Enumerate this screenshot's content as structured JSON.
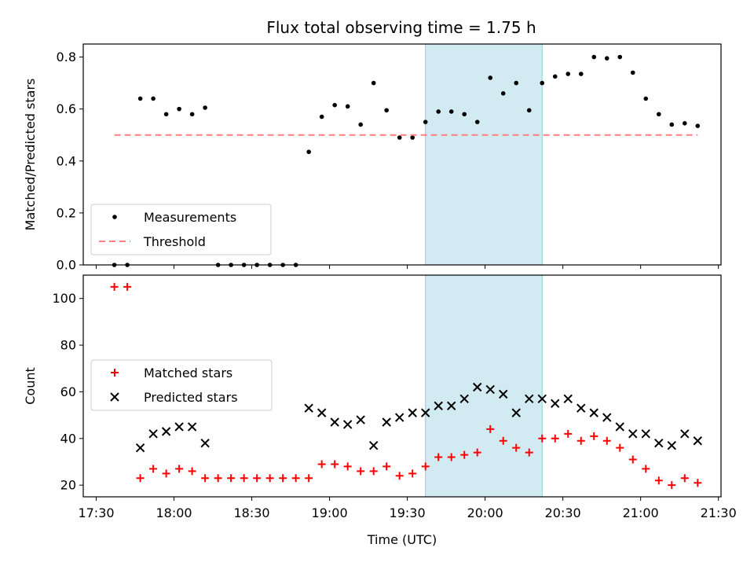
{
  "chart_data": {
    "title": "Flux total observing time = 1.75 h",
    "shaded_region": {
      "x": [
        "19:37",
        "20:22"
      ],
      "color": "#add8e6"
    },
    "x_ticks": [
      "17:30",
      "18:00",
      "18:30",
      "19:00",
      "19:30",
      "20:00",
      "20:30",
      "21:00",
      "21:30"
    ],
    "xlabel": "Time (UTC)",
    "panels": [
      {
        "type": "scatter",
        "ylabel": "Matched/Predicted stars",
        "ylim": [
          0,
          0.85
        ],
        "y_ticks": [
          "0.0",
          "0.2",
          "0.4",
          "0.6",
          "0.8"
        ],
        "legend_position": "lower-left",
        "series": [
          {
            "name": "Measurements",
            "marker": "dot",
            "color": "#000000",
            "x": [
              "17:37",
              "17:42",
              "17:47",
              "17:52",
              "17:57",
              "18:02",
              "18:07",
              "18:12",
              "18:17",
              "18:22",
              "18:27",
              "18:32",
              "18:37",
              "18:42",
              "18:47",
              "18:52",
              "18:57",
              "19:02",
              "19:07",
              "19:12",
              "19:17",
              "19:22",
              "19:27",
              "19:32",
              "19:37",
              "19:42",
              "19:47",
              "19:52",
              "19:57",
              "20:02",
              "20:07",
              "20:12",
              "20:17",
              "20:22",
              "20:27",
              "20:32",
              "20:37",
              "20:42",
              "20:47",
              "20:52",
              "20:57",
              "21:02",
              "21:07",
              "21:12",
              "21:17",
              "21:22"
            ],
            "y": [
              0,
              0,
              0.64,
              0.64,
              0.58,
              0.6,
              0.58,
              0.605,
              0,
              0,
              0,
              0,
              0,
              0,
              0,
              0.435,
              0.57,
              0.615,
              0.61,
              0.54,
              0.7,
              0.595,
              0.49,
              0.49,
              0.55,
              0.59,
              0.59,
              0.58,
              0.55,
              0.72,
              0.66,
              0.7,
              0.595,
              0.7,
              0.725,
              0.735,
              0.735,
              0.8,
              0.795,
              0.8,
              0.74,
              0.64,
              0.58,
              0.54,
              0.545,
              0.535
            ]
          },
          {
            "name": "Threshold",
            "marker": "dashed-line",
            "color": "#ff7f7f",
            "x": [
              "17:37",
              "21:22"
            ],
            "y": [
              0.5,
              0.5
            ]
          }
        ]
      },
      {
        "type": "scatter",
        "ylabel": "Count",
        "ylim": [
          15,
          110
        ],
        "y_ticks": [
          "20",
          "40",
          "60",
          "80",
          "100"
        ],
        "legend_position": "center-left",
        "series": [
          {
            "name": "Matched stars",
            "marker": "plus",
            "color": "#ff0000",
            "x": [
              "17:37",
              "17:42",
              "17:47",
              "17:52",
              "17:57",
              "18:02",
              "18:07",
              "18:12",
              "18:17",
              "18:22",
              "18:27",
              "18:32",
              "18:37",
              "18:42",
              "18:47",
              "18:52",
              "18:57",
              "19:02",
              "19:07",
              "19:12",
              "19:17",
              "19:22",
              "19:27",
              "19:32",
              "19:37",
              "19:42",
              "19:47",
              "19:52",
              "19:57",
              "20:02",
              "20:07",
              "20:12",
              "20:17",
              "20:22",
              "20:27",
              "20:32",
              "20:37",
              "20:42",
              "20:47",
              "20:52",
              "20:57",
              "21:02",
              "21:07",
              "21:12",
              "21:17",
              "21:22"
            ],
            "y": [
              105,
              105,
              23,
              27,
              25,
              27,
              26,
              23,
              23,
              23,
              23,
              23,
              23,
              23,
              23,
              23,
              29,
              29,
              28,
              26,
              26,
              28,
              24,
              25,
              28,
              32,
              32,
              33,
              34,
              44,
              39,
              36,
              34,
              40,
              40,
              42,
              39,
              41,
              39,
              36,
              31,
              27,
              22,
              20,
              23,
              21
            ]
          },
          {
            "name": "Predicted stars",
            "marker": "x",
            "color": "#000000",
            "x": [
              "17:47",
              "17:52",
              "17:57",
              "18:02",
              "18:07",
              "18:12",
              "18:52",
              "18:57",
              "19:02",
              "19:07",
              "19:12",
              "19:17",
              "19:22",
              "19:27",
              "19:32",
              "19:37",
              "19:42",
              "19:47",
              "19:52",
              "19:57",
              "20:02",
              "20:07",
              "20:12",
              "20:17",
              "20:22",
              "20:27",
              "20:32",
              "20:37",
              "20:42",
              "20:47",
              "20:52",
              "20:57",
              "21:02",
              "21:07",
              "21:12",
              "21:17",
              "21:22"
            ],
            "y": [
              36,
              42,
              43,
              45,
              45,
              38,
              53,
              51,
              47,
              46,
              48,
              37,
              47,
              49,
              51,
              51,
              54,
              54,
              57,
              62,
              61,
              59,
              51,
              57,
              57,
              55,
              57,
              53,
              51,
              49,
              45,
              42,
              42,
              38,
              37,
              42,
              39
            ]
          }
        ]
      }
    ]
  }
}
